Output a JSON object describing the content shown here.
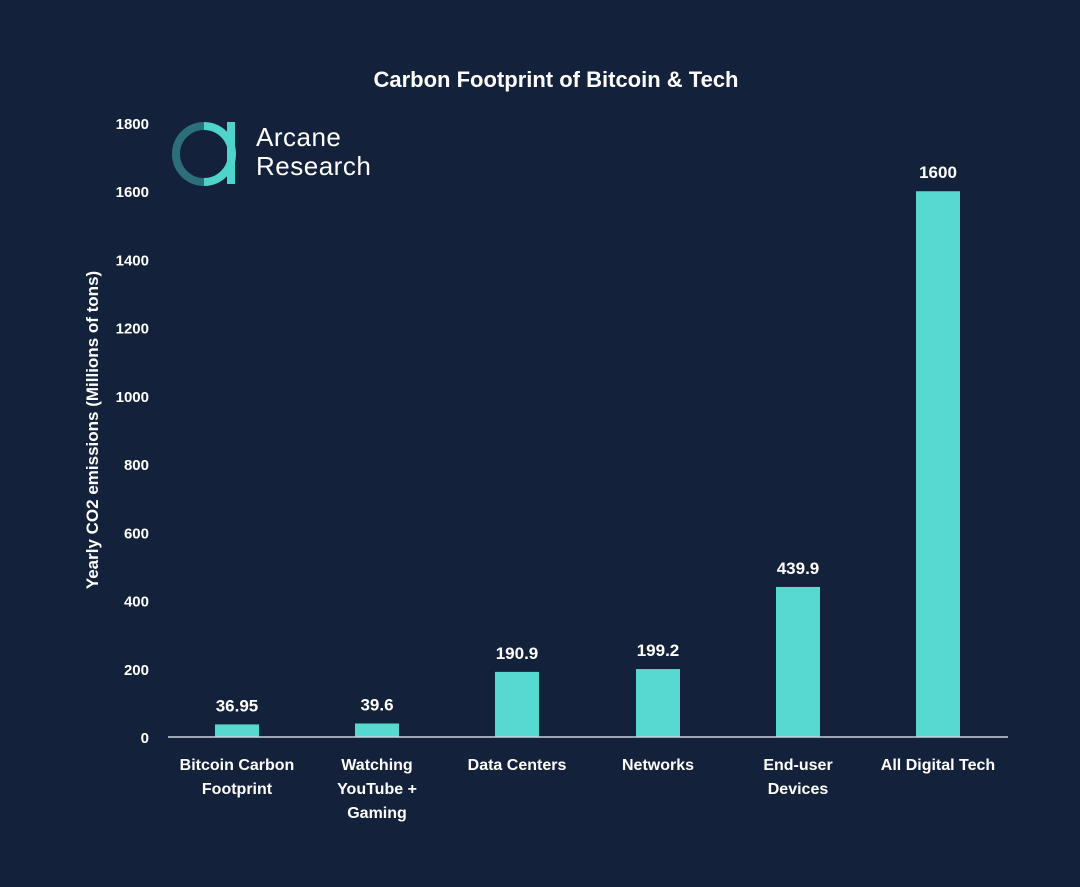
{
  "colors": {
    "background": "#13213a",
    "bar": "#57d8d0",
    "axis": "#c9d2de",
    "logo_accent": "#4fd4cc",
    "logo_dark": "#2c6e7a"
  },
  "logo": {
    "line1": "Arcane",
    "line2": "Research",
    "icon": "arcane-research-logo-icon"
  },
  "chart_data": {
    "type": "bar",
    "title": "Carbon Footprint of Bitcoin & Tech",
    "xlabel": "",
    "ylabel": "Yearly CO2 emissions (Millions of tons)",
    "ylim": [
      0,
      1800
    ],
    "yticks": [
      0,
      200,
      400,
      600,
      800,
      1000,
      1200,
      1400,
      1600,
      1800
    ],
    "grid": false,
    "categories": [
      [
        "Bitcoin Carbon",
        "Footprint"
      ],
      [
        "Watching",
        "YouTube +",
        "Gaming"
      ],
      [
        "Data Centers"
      ],
      [
        "Networks"
      ],
      [
        "End-user",
        "Devices"
      ],
      [
        "All Digital Tech"
      ]
    ],
    "values": [
      36.95,
      39.6,
      190.9,
      199.2,
      439.9,
      1600
    ],
    "data_labels": [
      "36.95",
      "39.6",
      "190.9",
      "199.2",
      "439.9",
      "1600"
    ]
  }
}
